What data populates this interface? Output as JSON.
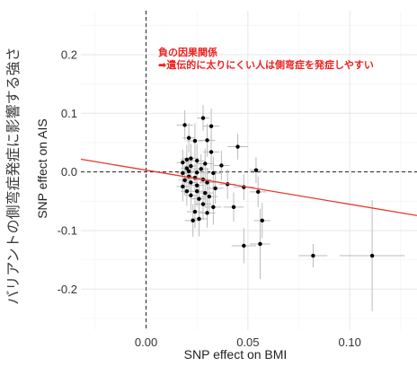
{
  "outer_label": "バリアントの側弯症発症に影響する強さ",
  "chart_data": {
    "type": "scatter",
    "xlabel": "SNP effect on BMI",
    "ylabel": "SNP effect on AIS",
    "xlim": [
      -0.032,
      0.133
    ],
    "ylim": [
      -0.27,
      0.275
    ],
    "xticks": [
      0.0,
      0.05,
      0.1
    ],
    "yticks": [
      -0.2,
      -0.1,
      0.0,
      0.1,
      0.2
    ],
    "xtick_labels": [
      "0.00",
      "0.05",
      "0.10"
    ],
    "ytick_labels": [
      "-0.2",
      "-0.1",
      "0.0",
      "0.1",
      "0.2"
    ],
    "grid": true,
    "reference_lines": {
      "x": 0,
      "y": 0,
      "style": "dashed"
    },
    "regression_line": {
      "intercept": 0.003,
      "slope": -0.582,
      "color": "#e8382f"
    },
    "annotation": {
      "lines": [
        "負の因果関係",
        "➡遺伝的に太りにくい人は側弯症を発症しやすい"
      ],
      "color": "#ee2222"
    },
    "point_color": "#000000",
    "errorbar_color": "#bbbbbb",
    "points": [
      {
        "x": 0.019,
        "y": 0.08,
        "xerr": 0.004,
        "yerr": 0.025
      },
      {
        "x": 0.028,
        "y": 0.092,
        "xerr": 0.003,
        "yerr": 0.022
      },
      {
        "x": 0.032,
        "y": 0.078,
        "xerr": 0.004,
        "yerr": 0.03
      },
      {
        "x": 0.021,
        "y": 0.058,
        "xerr": 0.003,
        "yerr": 0.025
      },
      {
        "x": 0.024,
        "y": 0.053,
        "xerr": 0.004,
        "yerr": 0.03
      },
      {
        "x": 0.03,
        "y": 0.054,
        "xerr": 0.004,
        "yerr": 0.028
      },
      {
        "x": 0.045,
        "y": 0.043,
        "xerr": 0.005,
        "yerr": 0.022
      },
      {
        "x": 0.032,
        "y": 0.034,
        "xerr": 0.004,
        "yerr": 0.03
      },
      {
        "x": 0.022,
        "y": 0.023,
        "xerr": 0.004,
        "yerr": 0.025
      },
      {
        "x": 0.02,
        "y": 0.021,
        "xerr": 0.003,
        "yerr": 0.025
      },
      {
        "x": 0.025,
        "y": 0.019,
        "xerr": 0.004,
        "yerr": 0.028
      },
      {
        "x": 0.018,
        "y": 0.016,
        "xerr": 0.003,
        "yerr": 0.022
      },
      {
        "x": 0.029,
        "y": 0.014,
        "xerr": 0.004,
        "yerr": 0.026
      },
      {
        "x": 0.022,
        "y": 0.01,
        "xerr": 0.003,
        "yerr": 0.025
      },
      {
        "x": 0.037,
        "y": 0.011,
        "xerr": 0.004,
        "yerr": 0.025
      },
      {
        "x": 0.02,
        "y": 0.006,
        "xerr": 0.003,
        "yerr": 0.025
      },
      {
        "x": 0.027,
        "y": 0.005,
        "xerr": 0.004,
        "yerr": 0.025
      },
      {
        "x": 0.021,
        "y": 0.001,
        "xerr": 0.003,
        "yerr": 0.025
      },
      {
        "x": 0.018,
        "y": -0.002,
        "xerr": 0.003,
        "yerr": 0.025
      },
      {
        "x": 0.025,
        "y": -0.001,
        "xerr": 0.004,
        "yerr": 0.026
      },
      {
        "x": 0.033,
        "y": -0.002,
        "xerr": 0.004,
        "yerr": 0.028
      },
      {
        "x": 0.054,
        "y": 0.003,
        "xerr": 0.003,
        "yerr": 0.022
      },
      {
        "x": 0.021,
        "y": -0.008,
        "xerr": 0.003,
        "yerr": 0.025
      },
      {
        "x": 0.024,
        "y": -0.01,
        "xerr": 0.004,
        "yerr": 0.025
      },
      {
        "x": 0.019,
        "y": -0.014,
        "xerr": 0.003,
        "yerr": 0.025
      },
      {
        "x": 0.028,
        "y": -0.013,
        "xerr": 0.004,
        "yerr": 0.025
      },
      {
        "x": 0.022,
        "y": -0.018,
        "xerr": 0.003,
        "yerr": 0.025
      },
      {
        "x": 0.03,
        "y": -0.018,
        "xerr": 0.004,
        "yerr": 0.025
      },
      {
        "x": 0.025,
        "y": -0.023,
        "xerr": 0.003,
        "yerr": 0.025
      },
      {
        "x": 0.04,
        "y": -0.021,
        "xerr": 0.004,
        "yerr": 0.025
      },
      {
        "x": 0.018,
        "y": -0.025,
        "xerr": 0.003,
        "yerr": 0.025
      },
      {
        "x": 0.034,
        "y": -0.028,
        "xerr": 0.004,
        "yerr": 0.026
      },
      {
        "x": 0.048,
        "y": -0.026,
        "xerr": 0.005,
        "yerr": 0.022
      },
      {
        "x": 0.02,
        "y": -0.033,
        "xerr": 0.003,
        "yerr": 0.025
      },
      {
        "x": 0.025,
        "y": -0.033,
        "xerr": 0.004,
        "yerr": 0.026
      },
      {
        "x": 0.029,
        "y": -0.036,
        "xerr": 0.004,
        "yerr": 0.025
      },
      {
        "x": 0.022,
        "y": -0.04,
        "xerr": 0.003,
        "yerr": 0.025
      },
      {
        "x": 0.031,
        "y": -0.042,
        "xerr": 0.004,
        "yerr": 0.025
      },
      {
        "x": 0.026,
        "y": -0.046,
        "xerr": 0.004,
        "yerr": 0.025
      },
      {
        "x": 0.055,
        "y": -0.034,
        "xerr": 0.004,
        "yerr": 0.026
      },
      {
        "x": 0.028,
        "y": -0.055,
        "xerr": 0.004,
        "yerr": 0.027
      },
      {
        "x": 0.033,
        "y": -0.06,
        "xerr": 0.004,
        "yerr": 0.03
      },
      {
        "x": 0.043,
        "y": -0.06,
        "xerr": 0.005,
        "yerr": 0.025
      },
      {
        "x": 0.024,
        "y": -0.068,
        "xerr": 0.004,
        "yerr": 0.028
      },
      {
        "x": 0.03,
        "y": -0.07,
        "xerr": 0.004,
        "yerr": 0.025
      },
      {
        "x": 0.023,
        "y": -0.083,
        "xerr": 0.004,
        "yerr": 0.028
      },
      {
        "x": 0.026,
        "y": -0.08,
        "xerr": 0.004,
        "yerr": 0.03
      },
      {
        "x": 0.057,
        "y": -0.083,
        "xerr": 0.004,
        "yerr": 0.03
      },
      {
        "x": 0.048,
        "y": -0.126,
        "xerr": 0.006,
        "yerr": 0.03
      },
      {
        "x": 0.056,
        "y": -0.123,
        "xerr": 0.005,
        "yerr": 0.06
      },
      {
        "x": 0.082,
        "y": -0.143,
        "xerr": 0.007,
        "yerr": 0.02
      },
      {
        "x": 0.111,
        "y": -0.143,
        "xerr": 0.016,
        "yerr": 0.095
      }
    ]
  }
}
